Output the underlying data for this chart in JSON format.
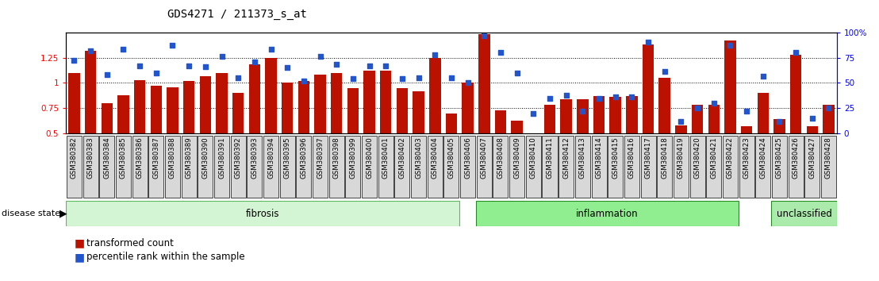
{
  "title": "GDS4271 / 211373_s_at",
  "samples": [
    "GSM380382",
    "GSM380383",
    "GSM380384",
    "GSM380385",
    "GSM380386",
    "GSM380387",
    "GSM380388",
    "GSM380389",
    "GSM380390",
    "GSM380391",
    "GSM380392",
    "GSM380393",
    "GSM380394",
    "GSM380395",
    "GSM380396",
    "GSM380397",
    "GSM380398",
    "GSM380399",
    "GSM380400",
    "GSM380401",
    "GSM380402",
    "GSM380403",
    "GSM380404",
    "GSM380405",
    "GSM380406",
    "GSM380407",
    "GSM380408",
    "GSM380409",
    "GSM380410",
    "GSM380411",
    "GSM380412",
    "GSM380413",
    "GSM380414",
    "GSM380415",
    "GSM380416",
    "GSM380417",
    "GSM380418",
    "GSM380419",
    "GSM380420",
    "GSM380421",
    "GSM380422",
    "GSM380423",
    "GSM380424",
    "GSM380425",
    "GSM380426",
    "GSM380427",
    "GSM380428"
  ],
  "bar_values": [
    1.1,
    1.32,
    0.8,
    0.88,
    1.03,
    0.97,
    0.96,
    1.02,
    1.07,
    1.1,
    0.9,
    1.18,
    1.25,
    1.0,
    1.02,
    1.08,
    1.1,
    0.95,
    1.12,
    1.12,
    0.95,
    0.92,
    1.25,
    0.7,
    1.0,
    1.48,
    0.73,
    0.63,
    0.47,
    0.78,
    0.84,
    0.84,
    0.87,
    0.86,
    0.87,
    1.38,
    1.05,
    0.58,
    0.78,
    0.78,
    1.42,
    0.57,
    0.9,
    0.64,
    1.28,
    0.57,
    0.78
  ],
  "dot_pct": [
    72,
    82,
    58,
    83,
    67,
    60,
    87,
    67,
    66,
    76,
    55,
    71,
    83,
    65,
    52,
    76,
    68,
    54,
    67,
    67,
    54,
    55,
    78,
    55,
    50,
    97,
    80,
    60,
    20,
    35,
    38,
    22,
    35,
    36,
    36,
    90,
    61,
    12,
    25,
    30,
    87,
    22,
    57,
    12,
    80,
    15,
    25
  ],
  "groups": [
    {
      "label": "fibrosis",
      "start": 0,
      "end": 24,
      "color": "#d4f5d4",
      "edge": "#5cb85c"
    },
    {
      "label": "inflammation",
      "start": 25,
      "end": 41,
      "color": "#90ee90",
      "edge": "#228B22"
    },
    {
      "label": "unclassified",
      "start": 43,
      "end": 47,
      "color": "#aaeaaa",
      "edge": "#228B22"
    }
  ],
  "ylim_left": [
    0.5,
    1.5
  ],
  "yticks_left": [
    0.5,
    0.75,
    1.0,
    1.25
  ],
  "ytick_labels_left": [
    "0.5",
    "0.75",
    "1",
    "1.25"
  ],
  "ylim_right": [
    0,
    100
  ],
  "yticks_right": [
    0,
    25,
    50,
    75,
    100
  ],
  "ytick_labels_right": [
    "0",
    "25",
    "50",
    "75",
    "100%"
  ],
  "bar_color": "#bb1100",
  "dot_color": "#2255cc",
  "bar_width": 0.7,
  "title_fontsize": 10,
  "tick_fontsize": 7.5,
  "label_fontsize": 8
}
